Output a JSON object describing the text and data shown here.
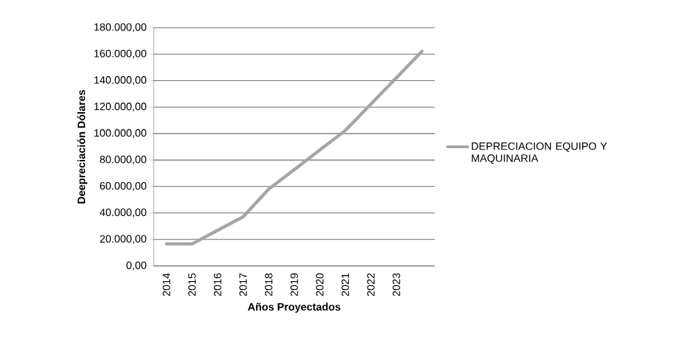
{
  "chart_data": {
    "type": "line",
    "xlabel": "Años Proyectados",
    "ylabel": "Deepreciación  Dólares",
    "categories": [
      "2014",
      "2015",
      "2016",
      "2017",
      "2018",
      "2019",
      "2020",
      "2021",
      "2022",
      "2023",
      null
    ],
    "series": [
      {
        "name": "DEPRECIACION EQUIPO Y MAQUINARIA",
        "color": "#a5a5a5",
        "values": [
          16600,
          16600,
          26900,
          37100,
          58000,
          72700,
          87600,
          102300,
          122200,
          142100,
          162100
        ]
      }
    ],
    "ylim": [
      0,
      180000
    ],
    "yticks": [
      {
        "value": 0,
        "label": "0,00"
      },
      {
        "value": 20000,
        "label": "20.000,00"
      },
      {
        "value": 40000,
        "label": "40.000,00"
      },
      {
        "value": 60000,
        "label": "60.000,00"
      },
      {
        "value": 80000,
        "label": "80.000,00"
      },
      {
        "value": 100000,
        "label": "100.000,00"
      },
      {
        "value": 120000,
        "label": "120.000,00"
      },
      {
        "value": 140000,
        "label": "140.000,00"
      },
      {
        "value": 160000,
        "label": "160.000,00"
      },
      {
        "value": 180000,
        "label": "180.000,00"
      }
    ],
    "grid": "y",
    "legend": "right",
    "marker": "none",
    "line_style": "solid"
  }
}
